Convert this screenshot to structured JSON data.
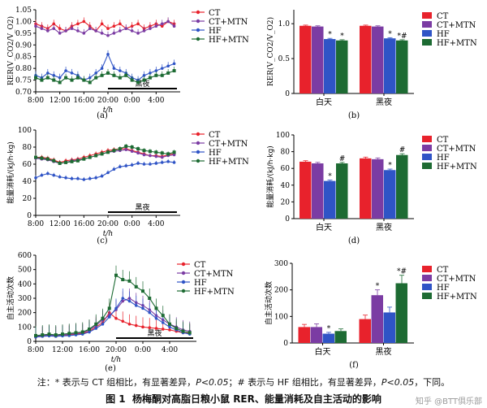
{
  "caption": {
    "label": "图 1",
    "title": "杨梅酮对高脂日粮小鼠 RER、能量消耗及自主活动的影响"
  },
  "note": {
    "prefix": "注：* 表示与 CT 组相比，有显著差异，",
    "p1": "P<0.05",
    "middle": "；# 表示与 HF 组相比，有显著差异，",
    "p2": "P<0.05",
    "suffix": "，下同。"
  },
  "watermark": "知乎 @BTT俱乐部",
  "legend": [
    "CT",
    "CT+MTN",
    "HF",
    "HF+MTN"
  ],
  "colors": {
    "CT": "#e8222c",
    "CT+MTN": "#7b3ca3",
    "HF": "#2f54c6",
    "HF+MTN": "#1d6b33"
  },
  "chart_data": [
    {
      "panel": "(a)",
      "type": "line",
      "ylabel": "RER(V_CO2/V_O2)",
      "xlabel": "t/h",
      "ylim": [
        0.7,
        1.05
      ],
      "yticks": [
        0.7,
        0.75,
        0.8,
        0.85,
        0.9,
        0.95,
        1.0,
        1.05
      ],
      "xticks": [
        "8:00",
        "12:00",
        "16:00",
        "20:00",
        "0:00",
        "4:00"
      ],
      "xrange": [
        0,
        24
      ],
      "tick_positions": [
        0,
        4,
        8,
        12,
        16,
        20
      ],
      "night_label": "黑夜",
      "night_range": [
        12,
        24
      ],
      "x": [
        0,
        1,
        2,
        3,
        4,
        5,
        6,
        7,
        8,
        9,
        10,
        11,
        12,
        13,
        14,
        15,
        16,
        17,
        18,
        19,
        20,
        21,
        22,
        23
      ],
      "series": [
        {
          "name": "CT",
          "values": [
            0.99,
            0.98,
            0.97,
            0.99,
            0.97,
            0.96,
            0.98,
            0.99,
            1.0,
            0.98,
            0.96,
            0.99,
            0.97,
            0.98,
            0.99,
            0.97,
            0.98,
            0.99,
            0.97,
            0.98,
            0.99,
            0.98,
            1.0,
            0.99
          ]
        },
        {
          "name": "CT+MTN",
          "values": [
            0.98,
            0.97,
            0.96,
            0.97,
            0.95,
            0.96,
            0.97,
            0.96,
            0.95,
            0.97,
            0.96,
            0.95,
            0.94,
            0.95,
            0.96,
            0.97,
            0.96,
            0.95,
            0.96,
            0.97,
            0.98,
            0.99,
            1.0,
            0.98
          ]
        },
        {
          "name": "HF",
          "values": [
            0.77,
            0.76,
            0.78,
            0.77,
            0.76,
            0.79,
            0.78,
            0.77,
            0.75,
            0.76,
            0.78,
            0.8,
            0.86,
            0.8,
            0.79,
            0.78,
            0.76,
            0.75,
            0.77,
            0.78,
            0.79,
            0.8,
            0.81,
            0.82
          ]
        },
        {
          "name": "HF+MTN",
          "values": [
            0.76,
            0.75,
            0.76,
            0.75,
            0.74,
            0.76,
            0.75,
            0.76,
            0.75,
            0.74,
            0.76,
            0.77,
            0.78,
            0.77,
            0.76,
            0.77,
            0.75,
            0.74,
            0.75,
            0.76,
            0.77,
            0.77,
            0.78,
            0.79
          ]
        }
      ]
    },
    {
      "panel": "(b)",
      "type": "bar",
      "ylabel": "RER(V_CO2/V_O2)",
      "ylim": [
        0,
        1.2
      ],
      "yticks": [
        0,
        0.5,
        1.0,
        1.5
      ],
      "ytick_labels": [
        "0",
        "0.5",
        "1.0",
        ""
      ],
      "categories": [
        "白天",
        "黑夜"
      ],
      "series": [
        {
          "name": "CT",
          "values": [
            0.97,
            0.97
          ],
          "errors": [
            0.01,
            0.01
          ]
        },
        {
          "name": "CT+MTN",
          "values": [
            0.96,
            0.96
          ],
          "errors": [
            0.01,
            0.01
          ]
        },
        {
          "name": "HF",
          "values": [
            0.78,
            0.79
          ],
          "errors": [
            0.01,
            0.01
          ]
        },
        {
          "name": "HF+MTN",
          "values": [
            0.76,
            0.76
          ],
          "errors": [
            0.01,
            0.01
          ]
        }
      ],
      "annotations": [
        {
          "category": 0,
          "series": 2,
          "text": "*"
        },
        {
          "category": 0,
          "series": 3,
          "text": "*"
        },
        {
          "category": 1,
          "series": 2,
          "text": "*"
        },
        {
          "category": 1,
          "series": 3,
          "text": "*#"
        }
      ]
    },
    {
      "panel": "(c)",
      "type": "line",
      "ylabel": "能量消耗/(kJ/h·kg)",
      "xlabel": "t/h",
      "ylim": [
        0,
        100
      ],
      "yticks": [
        0,
        20,
        40,
        60,
        80,
        100
      ],
      "xticks": [
        "8:00",
        "12:00",
        "16:00",
        "20:00",
        "0:00",
        "4:00"
      ],
      "xrange": [
        0,
        24
      ],
      "tick_positions": [
        0,
        4,
        8,
        12,
        16,
        20
      ],
      "night_label": "黑夜",
      "night_range": [
        12,
        24
      ],
      "x": [
        0,
        1,
        2,
        3,
        4,
        5,
        6,
        7,
        8,
        9,
        10,
        11,
        12,
        13,
        14,
        15,
        16,
        17,
        18,
        19,
        20,
        21,
        22,
        23
      ],
      "series": [
        {
          "name": "CT",
          "values": [
            68,
            68,
            67,
            65,
            62,
            64,
            65,
            66,
            68,
            70,
            72,
            74,
            76,
            77,
            78,
            78,
            76,
            74,
            72,
            70,
            70,
            69,
            71,
            72
          ]
        },
        {
          "name": "CT+MTN",
          "values": [
            67,
            66,
            65,
            63,
            61,
            62,
            64,
            65,
            66,
            68,
            70,
            72,
            74,
            75,
            76,
            77,
            75,
            73,
            71,
            70,
            69,
            68,
            70,
            71
          ]
        },
        {
          "name": "HF",
          "values": [
            44,
            47,
            49,
            47,
            45,
            44,
            43,
            43,
            42,
            43,
            44,
            46,
            50,
            54,
            57,
            58,
            59,
            61,
            60,
            60,
            61,
            62,
            63,
            62
          ]
        },
        {
          "name": "HF+MTN",
          "values": [
            68,
            67,
            66,
            64,
            61,
            62,
            63,
            64,
            66,
            68,
            70,
            72,
            74,
            76,
            78,
            81,
            80,
            78,
            76,
            75,
            74,
            73,
            72,
            74
          ]
        }
      ]
    },
    {
      "panel": "(d)",
      "type": "bar",
      "ylabel": "能量消耗/(kJ/h·kg)",
      "ylim": [
        0,
        100
      ],
      "yticks": [
        0,
        20,
        40,
        60,
        80,
        100
      ],
      "categories": [
        "白天",
        "黑夜"
      ],
      "series": [
        {
          "name": "CT",
          "values": [
            68,
            72
          ],
          "errors": [
            1.2,
            1.5
          ]
        },
        {
          "name": "CT+MTN",
          "values": [
            66,
            71
          ],
          "errors": [
            1.2,
            1.5
          ]
        },
        {
          "name": "HF",
          "values": [
            45,
            58
          ],
          "errors": [
            1.0,
            1.2
          ]
        },
        {
          "name": "HF+MTN",
          "values": [
            66,
            76
          ],
          "errors": [
            1.2,
            1.5
          ]
        }
      ],
      "annotations": [
        {
          "category": 0,
          "series": 2,
          "text": "*"
        },
        {
          "category": 0,
          "series": 3,
          "text": "#"
        },
        {
          "category": 1,
          "series": 2,
          "text": "*"
        },
        {
          "category": 1,
          "series": 3,
          "text": "#"
        }
      ]
    },
    {
      "panel": "(e)",
      "type": "line",
      "ylabel": "自主活动次数",
      "xlabel": "t/h",
      "ylim": [
        0,
        600
      ],
      "yticks": [
        0,
        100,
        200,
        300,
        400,
        500,
        600
      ],
      "xticks": [
        "8:00",
        "12:00",
        "16:00",
        "20:00",
        "0:00",
        "4:00"
      ],
      "xrange": [
        0,
        24
      ],
      "tick_positions": [
        0,
        4,
        8,
        12,
        16,
        20
      ],
      "night_label": "黑夜",
      "night_range": [
        12,
        24
      ],
      "x": [
        0,
        1,
        2,
        3,
        4,
        5,
        6,
        7,
        8,
        9,
        10,
        11,
        12,
        13,
        14,
        15,
        16,
        17,
        18,
        19,
        20,
        21,
        22,
        23
      ],
      "series": [
        {
          "name": "CT",
          "values": [
            30,
            35,
            40,
            35,
            40,
            45,
            50,
            55,
            70,
            100,
            130,
            200,
            160,
            140,
            120,
            110,
            100,
            95,
            90,
            85,
            80,
            70,
            60,
            55
          ]
        },
        {
          "name": "CT+MTN",
          "values": [
            35,
            40,
            45,
            40,
            45,
            50,
            55,
            60,
            80,
            110,
            150,
            180,
            220,
            280,
            300,
            270,
            250,
            220,
            180,
            150,
            120,
            100,
            80,
            70
          ]
        },
        {
          "name": "HF",
          "values": [
            30,
            35,
            38,
            35,
            38,
            40,
            45,
            50,
            65,
            90,
            120,
            170,
            230,
            300,
            280,
            250,
            230,
            200,
            160,
            130,
            100,
            80,
            60,
            50
          ]
        },
        {
          "name": "HF+MTN",
          "values": [
            40,
            45,
            50,
            45,
            50,
            55,
            60,
            65,
            85,
            120,
            160,
            230,
            460,
            430,
            420,
            380,
            350,
            300,
            230,
            180,
            120,
            90,
            70,
            60
          ]
        }
      ]
    },
    {
      "panel": "(f)",
      "type": "bar",
      "ylabel": "自主活动次数",
      "ylim": [
        0,
        300
      ],
      "yticks": [
        0,
        100,
        200,
        300
      ],
      "categories": [
        "白天",
        "黑夜"
      ],
      "series": [
        {
          "name": "CT",
          "values": [
            60,
            90
          ],
          "errors": [
            10,
            15
          ]
        },
        {
          "name": "CT+MTN",
          "values": [
            60,
            180
          ],
          "errors": [
            12,
            20
          ]
        },
        {
          "name": "HF",
          "values": [
            35,
            115
          ],
          "errors": [
            5,
            20
          ]
        },
        {
          "name": "HF+MTN",
          "values": [
            45,
            225
          ],
          "errors": [
            8,
            30
          ]
        }
      ],
      "annotations": [
        {
          "category": 0,
          "series": 2,
          "text": "*"
        },
        {
          "category": 1,
          "series": 1,
          "text": "*"
        },
        {
          "category": 1,
          "series": 3,
          "text": "*#"
        }
      ]
    }
  ]
}
